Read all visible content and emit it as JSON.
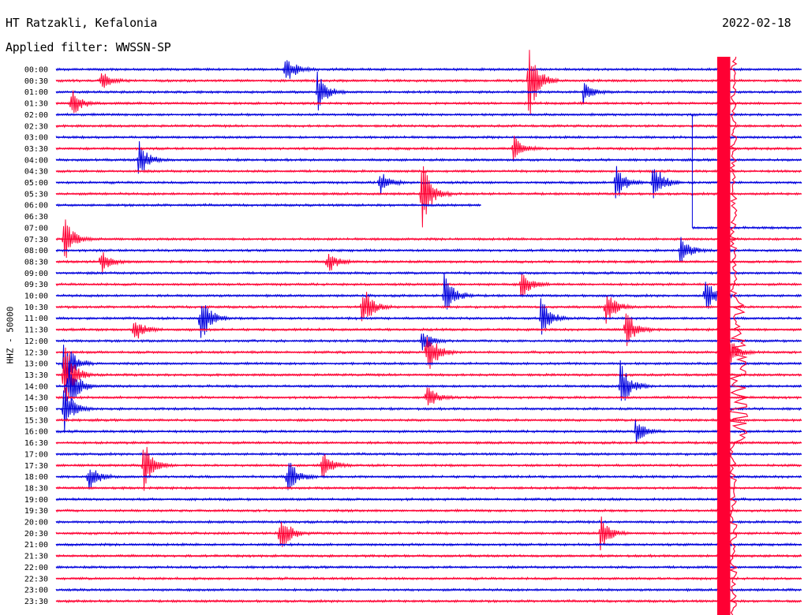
{
  "header": {
    "station": "HT Ratzakli, Kefalonia",
    "date": "2022-02-18",
    "filter": "Applied filter: WWSSN-SP"
  },
  "chart_data": {
    "type": "line",
    "subtype": "helicorder",
    "ylabel": "HHZ - 50000",
    "colors": {
      "even_rows": "#0000dd",
      "odd_rows": "#ff0033"
    },
    "rows": [
      "00:00",
      "00:30",
      "01:00",
      "01:30",
      "02:00",
      "02:30",
      "03:00",
      "03:30",
      "04:00",
      "04:30",
      "05:00",
      "05:30",
      "06:00",
      "06:30",
      "07:00",
      "07:30",
      "08:00",
      "08:30",
      "09:00",
      "09:30",
      "10:00",
      "10:30",
      "11:00",
      "11:30",
      "12:00",
      "12:30",
      "13:00",
      "13:30",
      "14:00",
      "14:30",
      "15:00",
      "15:30",
      "16:00",
      "16:30",
      "17:00",
      "17:30",
      "18:00",
      "18:30",
      "19:00",
      "19:30",
      "20:00",
      "20:30",
      "21:00",
      "21:30",
      "22:00",
      "22:30",
      "23:00",
      "23:30"
    ],
    "data_gap": {
      "from": "06:00",
      "to": "07:00"
    },
    "events": [
      {
        "row": "00:00",
        "minute": 9.2,
        "amp": 0.7
      },
      {
        "row": "00:30",
        "minute": 19.0,
        "amp": 1.6
      },
      {
        "row": "00:30",
        "minute": 1.8,
        "amp": 0.4
      },
      {
        "row": "01:00",
        "minute": 10.5,
        "amp": 0.8
      },
      {
        "row": "01:00",
        "minute": 21.2,
        "amp": 0.5
      },
      {
        "row": "01:30",
        "minute": 0.6,
        "amp": 0.6
      },
      {
        "row": "03:30",
        "minute": 18.4,
        "amp": 0.5
      },
      {
        "row": "04:00",
        "minute": 3.3,
        "amp": 0.8
      },
      {
        "row": "05:00",
        "minute": 22.5,
        "amp": 0.8
      },
      {
        "row": "05:00",
        "minute": 24.0,
        "amp": 1.0
      },
      {
        "row": "05:00",
        "minute": 13.0,
        "amp": 0.5
      },
      {
        "row": "05:30",
        "minute": 14.7,
        "amp": 1.4
      },
      {
        "row": "07:30",
        "minute": 0.3,
        "amp": 1.0
      },
      {
        "row": "08:00",
        "minute": 25.1,
        "amp": 0.6
      },
      {
        "row": "08:30",
        "minute": 1.8,
        "amp": 0.5
      },
      {
        "row": "08:30",
        "minute": 10.9,
        "amp": 0.5
      },
      {
        "row": "09:30",
        "minute": 18.7,
        "amp": 0.6
      },
      {
        "row": "10:00",
        "minute": 15.6,
        "amp": 1.1
      },
      {
        "row": "10:00",
        "minute": 26.1,
        "amp": 0.8
      },
      {
        "row": "10:30",
        "minute": 12.3,
        "amp": 1.0
      },
      {
        "row": "10:30",
        "minute": 22.1,
        "amp": 0.8
      },
      {
        "row": "11:00",
        "minute": 5.8,
        "amp": 1.1
      },
      {
        "row": "11:00",
        "minute": 19.5,
        "amp": 0.9
      },
      {
        "row": "11:30",
        "minute": 3.1,
        "amp": 0.6
      },
      {
        "row": "11:30",
        "minute": 22.9,
        "amp": 0.9
      },
      {
        "row": "12:00",
        "minute": 14.7,
        "amp": 0.5
      },
      {
        "row": "12:30",
        "minute": 14.9,
        "amp": 1.2
      },
      {
        "row": "12:30",
        "minute": 26.9,
        "amp": 1.0
      },
      {
        "row": "13:00",
        "minute": 0.3,
        "amp": 1.2
      },
      {
        "row": "13:30",
        "minute": 0.3,
        "amp": 1.6
      },
      {
        "row": "14:00",
        "minute": 0.5,
        "amp": 1.2
      },
      {
        "row": "14:00",
        "minute": 22.7,
        "amp": 1.0
      },
      {
        "row": "14:30",
        "minute": 14.9,
        "amp": 0.6
      },
      {
        "row": "15:00",
        "minute": 0.3,
        "amp": 1.0
      },
      {
        "row": "16:00",
        "minute": 23.3,
        "amp": 0.5
      },
      {
        "row": "17:30",
        "minute": 3.5,
        "amp": 1.1
      },
      {
        "row": "17:30",
        "minute": 10.7,
        "amp": 0.6
      },
      {
        "row": "18:00",
        "minute": 1.3,
        "amp": 0.6
      },
      {
        "row": "18:00",
        "minute": 9.3,
        "amp": 0.8
      },
      {
        "row": "20:30",
        "minute": 9.0,
        "amp": 1.0
      },
      {
        "row": "20:30",
        "minute": 21.9,
        "amp": 0.7
      }
    ],
    "dense_band": {
      "from_minute": 26.6,
      "to_minute": 27.0,
      "rows": "00:00-23:30"
    }
  }
}
